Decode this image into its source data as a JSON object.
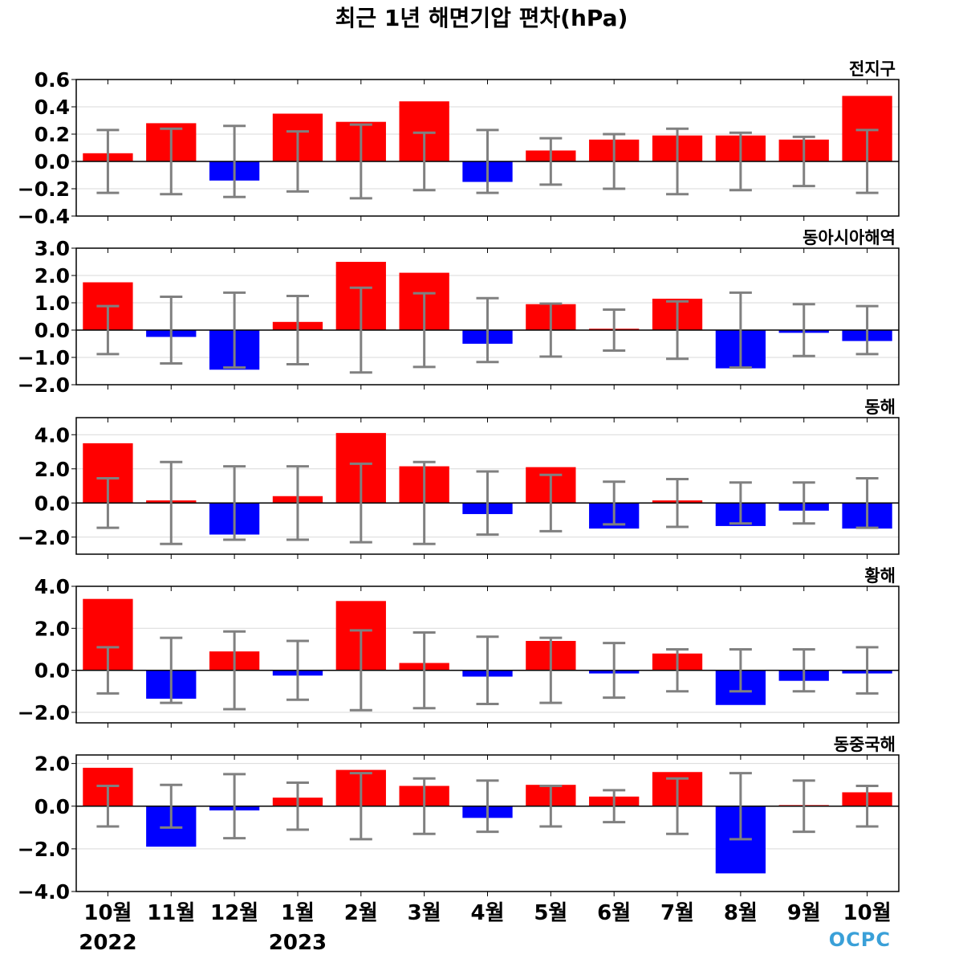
{
  "chart_data": {
    "type": "bar",
    "title": "최근 1년 해면기압 편차(hPa)",
    "categories": [
      "10월",
      "11월",
      "12월",
      "1월",
      "2월",
      "3월",
      "4월",
      "5월",
      "6월",
      "7월",
      "8월",
      "9월",
      "10월"
    ],
    "year_labels": [
      {
        "index": 0,
        "label": "2022"
      },
      {
        "index": 3,
        "label": "2023"
      }
    ],
    "positive_color": "#ff0000",
    "negative_color": "#0000ff",
    "errorbar_color": "#808080",
    "gridlines": true,
    "logo": "OCPC",
    "panels": [
      {
        "name": "전지구",
        "ylim": [
          -0.4,
          0.6
        ],
        "yticks": [
          -0.4,
          -0.2,
          0.0,
          0.2,
          0.4,
          0.6
        ],
        "tick_labels": [
          "−0.4",
          "−0.2",
          "0.0",
          "0.2",
          "0.4",
          "0.6"
        ],
        "values": [
          0.06,
          0.28,
          -0.14,
          0.35,
          0.29,
          0.44,
          -0.15,
          0.08,
          0.16,
          0.19,
          0.19,
          0.16,
          0.48
        ],
        "error": [
          0.23,
          0.24,
          0.26,
          0.22,
          0.27,
          0.21,
          0.23,
          0.17,
          0.2,
          0.24,
          0.21,
          0.18,
          0.23
        ]
      },
      {
        "name": "동아시아해역",
        "ylim": [
          -2.0,
          3.0
        ],
        "yticks": [
          -2.0,
          -1.0,
          0.0,
          1.0,
          2.0,
          3.0
        ],
        "tick_labels": [
          "−2.0",
          "−1.0",
          "0.0",
          "1.0",
          "2.0",
          "3.0"
        ],
        "values": [
          1.75,
          -0.25,
          -1.45,
          0.3,
          2.5,
          2.1,
          -0.5,
          0.95,
          0.05,
          1.15,
          -1.4,
          -0.1,
          -0.4
        ],
        "error": [
          0.88,
          1.22,
          1.37,
          1.25,
          1.55,
          1.35,
          1.17,
          0.97,
          0.75,
          1.05,
          1.37,
          0.95,
          0.88
        ]
      },
      {
        "name": "동해",
        "ylim": [
          -3.0,
          5.0
        ],
        "yticks": [
          -2.0,
          0.0,
          2.0,
          4.0
        ],
        "tick_labels": [
          "−2.0",
          "0.0",
          "2.0",
          "4.0"
        ],
        "values": [
          3.5,
          0.15,
          -1.85,
          0.4,
          4.1,
          2.15,
          -0.65,
          2.1,
          -1.5,
          0.15,
          -1.35,
          -0.45,
          -1.5
        ],
        "error": [
          1.45,
          2.4,
          2.15,
          2.15,
          2.3,
          2.4,
          1.85,
          1.65,
          1.25,
          1.4,
          1.2,
          1.2,
          1.45
        ]
      },
      {
        "name": "황해",
        "ylim": [
          -2.5,
          4.0
        ],
        "yticks": [
          -2.0,
          0.0,
          2.0,
          4.0
        ],
        "tick_labels": [
          "−2.0",
          "0.0",
          "2.0",
          "4.0"
        ],
        "values": [
          3.4,
          -1.35,
          0.9,
          -0.25,
          3.3,
          0.35,
          -0.3,
          1.4,
          -0.15,
          0.8,
          -1.65,
          -0.5,
          -0.15
        ],
        "error": [
          1.1,
          1.55,
          1.85,
          1.4,
          1.9,
          1.8,
          1.6,
          1.55,
          1.3,
          1.0,
          1.0,
          1.0,
          1.1
        ]
      },
      {
        "name": "동중국해",
        "ylim": [
          -4.0,
          2.4
        ],
        "yticks": [
          -4.0,
          -2.0,
          0.0,
          2.0
        ],
        "tick_labels": [
          "−4.0",
          "−2.0",
          "0.0",
          "2.0"
        ],
        "values": [
          1.8,
          -1.9,
          -0.2,
          0.4,
          1.7,
          0.95,
          -0.55,
          1.0,
          0.45,
          1.6,
          -3.15,
          0.05,
          0.65
        ],
        "error": [
          0.95,
          1.0,
          1.5,
          1.1,
          1.55,
          1.3,
          1.2,
          0.95,
          0.75,
          1.3,
          1.55,
          1.2,
          0.95
        ]
      }
    ]
  }
}
